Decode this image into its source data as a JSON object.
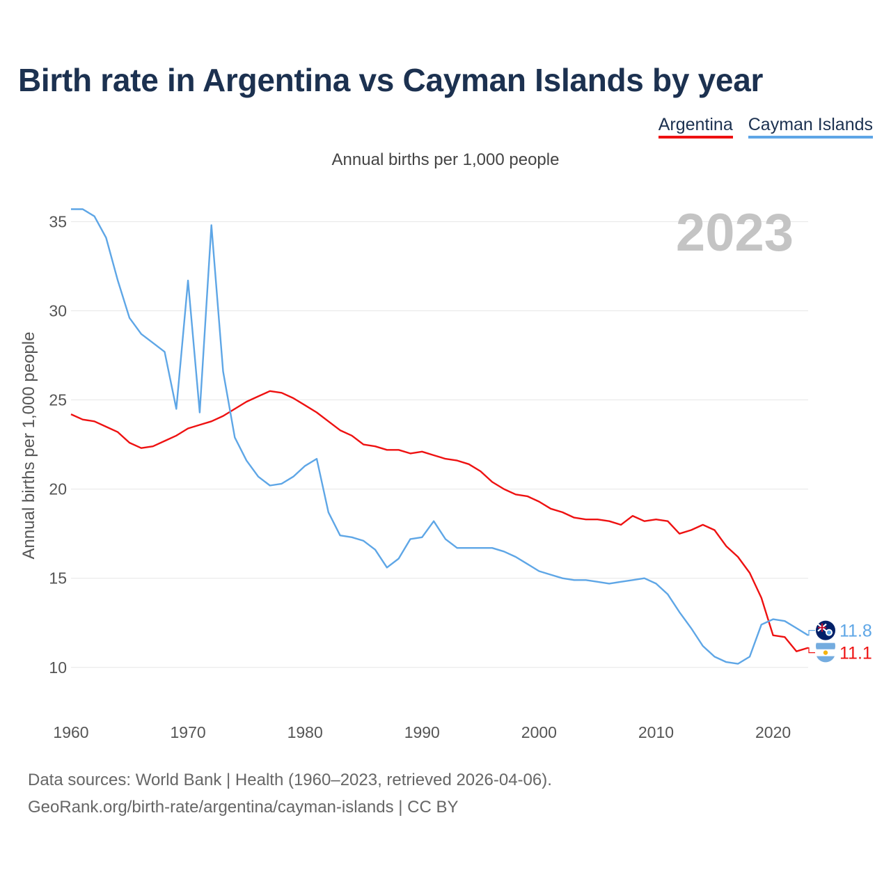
{
  "header": {
    "title": "Birth rate in Argentina vs Cayman Islands by year",
    "subtitle": "Annual births per 1,000 people"
  },
  "legend": [
    {
      "label": "Argentina",
      "color": "#ee1111"
    },
    {
      "label": "Cayman Islands",
      "color": "#5ea6e6"
    }
  ],
  "footer": {
    "line1": "Data sources: World Bank | Health (1960–2023, retrieved 2026-04-06).",
    "line2": "GeoRank.org/birth-rate/argentina/cayman-islands | CC BY"
  },
  "chart_data": {
    "type": "line",
    "title": "Birth rate in Argentina vs Cayman Islands by year",
    "ylabel": "Annual births per 1,000 people",
    "xlabel": "",
    "year_label": "2023",
    "xlim": [
      1960,
      2023
    ],
    "ylim": [
      8,
      36.5
    ],
    "xticks": [
      1960,
      1970,
      1980,
      1990,
      2000,
      2010,
      2020
    ],
    "yticks": [
      10,
      15,
      20,
      25,
      30,
      35
    ],
    "grid": true,
    "x": [
      1960,
      1961,
      1962,
      1963,
      1964,
      1965,
      1966,
      1967,
      1968,
      1969,
      1970,
      1971,
      1972,
      1973,
      1974,
      1975,
      1976,
      1977,
      1978,
      1979,
      1980,
      1981,
      1982,
      1983,
      1984,
      1985,
      1986,
      1987,
      1988,
      1989,
      1990,
      1991,
      1992,
      1993,
      1994,
      1995,
      1996,
      1997,
      1998,
      1999,
      2000,
      2001,
      2002,
      2003,
      2004,
      2005,
      2006,
      2007,
      2008,
      2009,
      2010,
      2011,
      2012,
      2013,
      2014,
      2015,
      2016,
      2017,
      2018,
      2019,
      2020,
      2021,
      2022,
      2023
    ],
    "series": [
      {
        "name": "Argentina",
        "color": "#ee1111",
        "end_label": "11.1",
        "values": [
          24.2,
          23.9,
          23.8,
          23.5,
          23.2,
          22.6,
          22.3,
          22.4,
          22.7,
          23.0,
          23.4,
          23.6,
          23.8,
          24.1,
          24.5,
          24.9,
          25.2,
          25.5,
          25.4,
          25.1,
          24.7,
          24.3,
          23.8,
          23.3,
          23.0,
          22.5,
          22.4,
          22.2,
          22.2,
          22.0,
          22.1,
          21.9,
          21.7,
          21.6,
          21.4,
          21.0,
          20.4,
          20.0,
          19.7,
          19.6,
          19.3,
          18.9,
          18.7,
          18.4,
          18.3,
          18.3,
          18.2,
          18.0,
          18.5,
          18.2,
          18.3,
          18.2,
          17.5,
          17.7,
          18.0,
          17.7,
          16.8,
          16.2,
          15.3,
          13.9,
          11.8,
          11.7,
          10.9,
          11.1
        ]
      },
      {
        "name": "Cayman Islands",
        "color": "#5ea6e6",
        "end_label": "11.8",
        "values": [
          35.7,
          35.7,
          35.3,
          34.1,
          31.7,
          29.6,
          28.7,
          28.2,
          27.7,
          24.5,
          31.7,
          24.3,
          34.8,
          26.6,
          22.9,
          21.6,
          20.7,
          20.2,
          20.3,
          20.7,
          21.3,
          21.7,
          18.7,
          17.4,
          17.3,
          17.1,
          16.6,
          15.6,
          16.1,
          17.2,
          17.3,
          18.2,
          17.2,
          16.7,
          16.7,
          16.7,
          16.7,
          16.5,
          16.2,
          15.8,
          15.4,
          15.2,
          15.0,
          14.9,
          14.9,
          14.8,
          14.7,
          14.8,
          14.9,
          15.0,
          14.7,
          14.1,
          13.1,
          12.2,
          11.2,
          10.6,
          10.3,
          10.2,
          10.6,
          12.4,
          12.7,
          12.6,
          12.2,
          11.8
        ]
      }
    ]
  }
}
